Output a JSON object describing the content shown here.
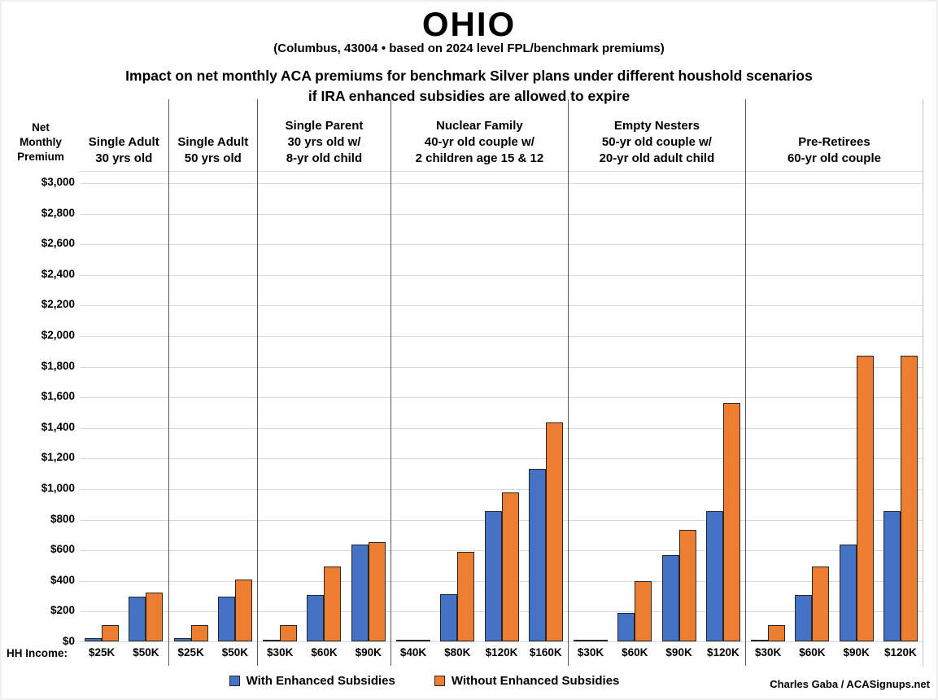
{
  "header": {
    "title": "OHIO",
    "subtitle": "(Columbus, 43004 • based on 2024 level FPL/benchmark premiums)",
    "heading": "Impact on net monthly ACA premiums for benchmark Silver plans under different houshold scenarios\nif IRA enhanced subsidies are allowed to expire"
  },
  "y_axis_title": "Net\nMonthly\nPremium",
  "hh_income_label": "HH Income:",
  "credit": "Charles Gaba / ACASignups.net",
  "legend": {
    "with_enhanced": {
      "label": "With Enhanced Subsidies",
      "color": "#4472C4"
    },
    "without_enhanced": {
      "label": "Without Enhanced Subsidies",
      "color": "#ED7D31"
    }
  },
  "colors": {
    "bar_blue": "#4472C4",
    "bar_orange": "#ED7D31",
    "bar_border": "#262626",
    "gridline": "#d9d9d9",
    "divider": "#595959"
  },
  "chart_data": {
    "type": "bar",
    "title": "OHIO — Impact on net monthly ACA premiums for benchmark Silver plans under different houshold scenarios if IRA enhanced subsidies are allowed to expire",
    "xlabel": "HH Income",
    "ylabel": "Net Monthly Premium",
    "ylim": [
      0,
      3000
    ],
    "ytick_step": 200,
    "ytick_labels": [
      "$0",
      "$200",
      "$400",
      "$600",
      "$800",
      "$1,000",
      "$1,200",
      "$1,400",
      "$1,600",
      "$1,800",
      "$2,000",
      "$2,200",
      "$2,400",
      "$2,600",
      "$2,800",
      "$3,000"
    ],
    "grid": true,
    "legend_position": "bottom",
    "series": [
      "With Enhanced Subsidies",
      "Without Enhanced Subsidies"
    ],
    "series_colors": [
      "#4472C4",
      "#ED7D31"
    ],
    "groups": [
      {
        "label": "Single Adult\n30 yrs old",
        "categories": [
          "$25K",
          "$50K"
        ],
        "with_enhanced": [
          20,
          295
        ],
        "without_enhanced": [
          105,
          320
        ]
      },
      {
        "label": "Single Adult\n50 yrs old",
        "categories": [
          "$25K",
          "$50K"
        ],
        "with_enhanced": [
          20,
          295
        ],
        "without_enhanced": [
          105,
          405
        ]
      },
      {
        "label": "Single Parent\n30 yrs old w/\n8-yr old child",
        "categories": [
          "$30K",
          "$60K",
          "$90K"
        ],
        "with_enhanced": [
          5,
          305,
          635
        ],
        "without_enhanced": [
          105,
          490,
          650
        ]
      },
      {
        "label": "Nuclear Family\n40-yr old couple w/\n2 children age 15 & 12",
        "categories": [
          "$40K",
          "$80K",
          "$120K",
          "$160K"
        ],
        "with_enhanced": [
          0,
          310,
          850,
          1130
        ],
        "without_enhanced": [
          0,
          585,
          975,
          1430
        ]
      },
      {
        "label": "Empty Nesters\n50-yr old couple w/\n20-yr old adult child",
        "categories": [
          "$30K",
          "$60K",
          "$90K",
          "$120K"
        ],
        "with_enhanced": [
          0,
          185,
          565,
          850
        ],
        "without_enhanced": [
          0,
          395,
          730,
          1560
        ]
      },
      {
        "label": "Pre-Retirees\n60-yr old couple",
        "categories": [
          "$30K",
          "$60K",
          "$90K",
          "$120K"
        ],
        "with_enhanced": [
          10,
          305,
          635,
          850
        ],
        "without_enhanced": [
          105,
          490,
          1865,
          1865
        ]
      }
    ]
  }
}
